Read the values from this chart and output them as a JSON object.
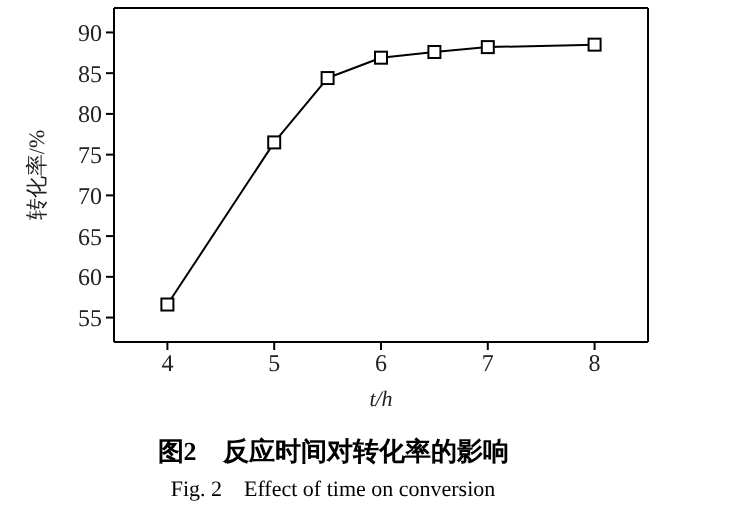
{
  "chart_data": {
    "type": "line",
    "title": "图2　反应时间对转化率的影响",
    "subtitle": "Fig. 2　Effect of time on conversion",
    "xlabel": "t/h",
    "ylabel": "转化率/%",
    "x": [
      4,
      5,
      5.5,
      6,
      6.5,
      7,
      8
    ],
    "series": [
      {
        "color": "#000000",
        "values": [
          56.6,
          76.5,
          84.4,
          86.9,
          87.6,
          88.2,
          88.5
        ]
      }
    ],
    "xlim": [
      3.5,
      8.5
    ],
    "xticks": [
      4,
      5,
      6,
      7,
      8
    ],
    "ylim": [
      52,
      93
    ],
    "yticks": [
      55,
      60,
      65,
      70,
      75,
      80,
      85,
      90
    ],
    "marker": "square",
    "line_style": "solid"
  }
}
